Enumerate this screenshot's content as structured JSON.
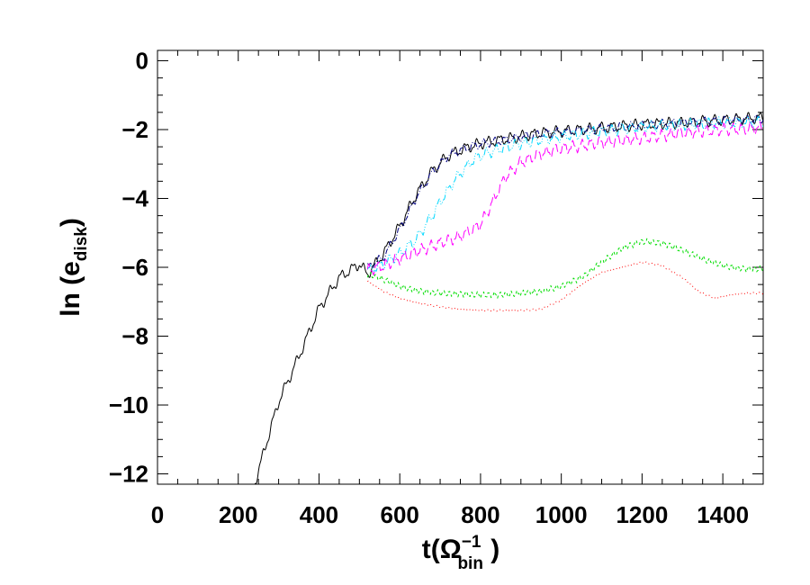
{
  "chart_data": {
    "type": "line",
    "title": "",
    "xlabel": {
      "main": "t(",
      "symbol": "Ω",
      "superscript": "−1",
      "subscript": "bin",
      "close": " )"
    },
    "ylabel": {
      "main": "ln (e",
      "subscript": "disk",
      "close": ")"
    },
    "xlim": [
      0,
      1500
    ],
    "ylim": [
      -12.3,
      0.3
    ],
    "xticks": [
      {
        "value": 0,
        "label": "0"
      },
      {
        "value": 200,
        "label": "200"
      },
      {
        "value": 400,
        "label": "400"
      },
      {
        "value": 600,
        "label": "600"
      },
      {
        "value": 800,
        "label": "800"
      },
      {
        "value": 1000,
        "label": "1000"
      },
      {
        "value": 1200,
        "label": "1200"
      },
      {
        "value": 1400,
        "label": "1400"
      }
    ],
    "yticks": [
      {
        "value": 0,
        "label": "0"
      },
      {
        "value": -2,
        "label": "−2"
      },
      {
        "value": -4,
        "label": "−4"
      },
      {
        "value": -6,
        "label": "−6"
      },
      {
        "value": -8,
        "label": "−8"
      },
      {
        "value": -10,
        "label": "−10"
      },
      {
        "value": -12,
        "label": "−12"
      }
    ],
    "x_minor_step": 50,
    "y_minor_step": 0.5,
    "grid": false,
    "series": [
      {
        "color": "#000000",
        "dash": "",
        "osc_amp": 0.13,
        "osc_period": 28,
        "x": [
          240,
          260,
          300,
          350,
          400,
          450,
          500,
          520,
          560,
          600,
          640,
          680,
          720,
          760,
          800,
          850,
          900,
          950,
          1000,
          1100,
          1200,
          1300,
          1400,
          1500
        ],
        "y": [
          -12.3,
          -11.5,
          -9.9,
          -8.6,
          -7.2,
          -6.3,
          -5.9,
          -6.2,
          -5.6,
          -4.8,
          -3.9,
          -3.2,
          -2.75,
          -2.55,
          -2.4,
          -2.3,
          -2.2,
          -2.1,
          -2.05,
          -1.95,
          -1.85,
          -1.8,
          -1.72,
          -1.65
        ]
      },
      {
        "color": "#000080",
        "dash": "6,2,1,2",
        "osc_amp": 0.1,
        "osc_period": 26,
        "x": [
          520,
          560,
          600,
          640,
          680,
          720,
          760,
          800,
          850,
          900,
          950,
          1000,
          1100,
          1200,
          1300,
          1400,
          1500
        ],
        "y": [
          -6.0,
          -5.7,
          -4.9,
          -4.0,
          -3.25,
          -2.75,
          -2.55,
          -2.42,
          -2.32,
          -2.22,
          -2.12,
          -2.07,
          -1.97,
          -1.87,
          -1.8,
          -1.74,
          -1.68
        ]
      },
      {
        "color": "#00d8ff",
        "dash": "7,2,1,2,1,2,1,2",
        "osc_amp": 0.13,
        "osc_period": 24,
        "x": [
          520,
          560,
          600,
          640,
          680,
          700,
          740,
          780,
          800,
          850,
          900,
          950,
          1000,
          1100,
          1200,
          1300,
          1400,
          1500
        ],
        "y": [
          -6.1,
          -5.9,
          -5.6,
          -5.2,
          -4.5,
          -4.1,
          -3.4,
          -2.9,
          -2.75,
          -2.55,
          -2.4,
          -2.3,
          -2.2,
          -2.05,
          -1.92,
          -1.85,
          -1.8,
          -1.78
        ]
      },
      {
        "color": "#ff00ff",
        "dash": "10,4",
        "osc_amp": 0.14,
        "osc_period": 22,
        "x": [
          520,
          560,
          600,
          640,
          700,
          750,
          800,
          830,
          860,
          900,
          950,
          1000,
          1100,
          1200,
          1300,
          1400,
          1500
        ],
        "y": [
          -6.1,
          -5.95,
          -5.75,
          -5.55,
          -5.3,
          -5.1,
          -4.75,
          -4.1,
          -3.4,
          -2.95,
          -2.7,
          -2.55,
          -2.38,
          -2.25,
          -2.1,
          -2.0,
          -1.95
        ]
      },
      {
        "color": "#00dd00",
        "dash": "3,3",
        "osc_amp": 0.07,
        "osc_period": 14,
        "x": [
          520,
          560,
          600,
          650,
          700,
          750,
          800,
          850,
          900,
          950,
          1000,
          1050,
          1100,
          1150,
          1200,
          1250,
          1300,
          1350,
          1400,
          1450,
          1500
        ],
        "y": [
          -6.2,
          -6.35,
          -6.55,
          -6.7,
          -6.75,
          -6.78,
          -6.8,
          -6.8,
          -6.75,
          -6.7,
          -6.55,
          -6.3,
          -5.85,
          -5.45,
          -5.25,
          -5.3,
          -5.5,
          -5.75,
          -5.95,
          -6.05,
          -6.05
        ]
      },
      {
        "color": "#ff0000",
        "dash": "1,3",
        "osc_amp": 0.02,
        "osc_period": 14,
        "x": [
          520,
          560,
          600,
          650,
          700,
          750,
          800,
          850,
          900,
          950,
          1000,
          1050,
          1100,
          1150,
          1200,
          1250,
          1300,
          1340,
          1380,
          1420,
          1460,
          1500
        ],
        "y": [
          -6.4,
          -6.7,
          -6.9,
          -7.05,
          -7.15,
          -7.22,
          -7.25,
          -7.25,
          -7.25,
          -7.22,
          -6.95,
          -6.5,
          -6.15,
          -6.0,
          -5.85,
          -5.95,
          -6.3,
          -6.7,
          -6.9,
          -6.8,
          -6.75,
          -6.75
        ]
      }
    ]
  }
}
